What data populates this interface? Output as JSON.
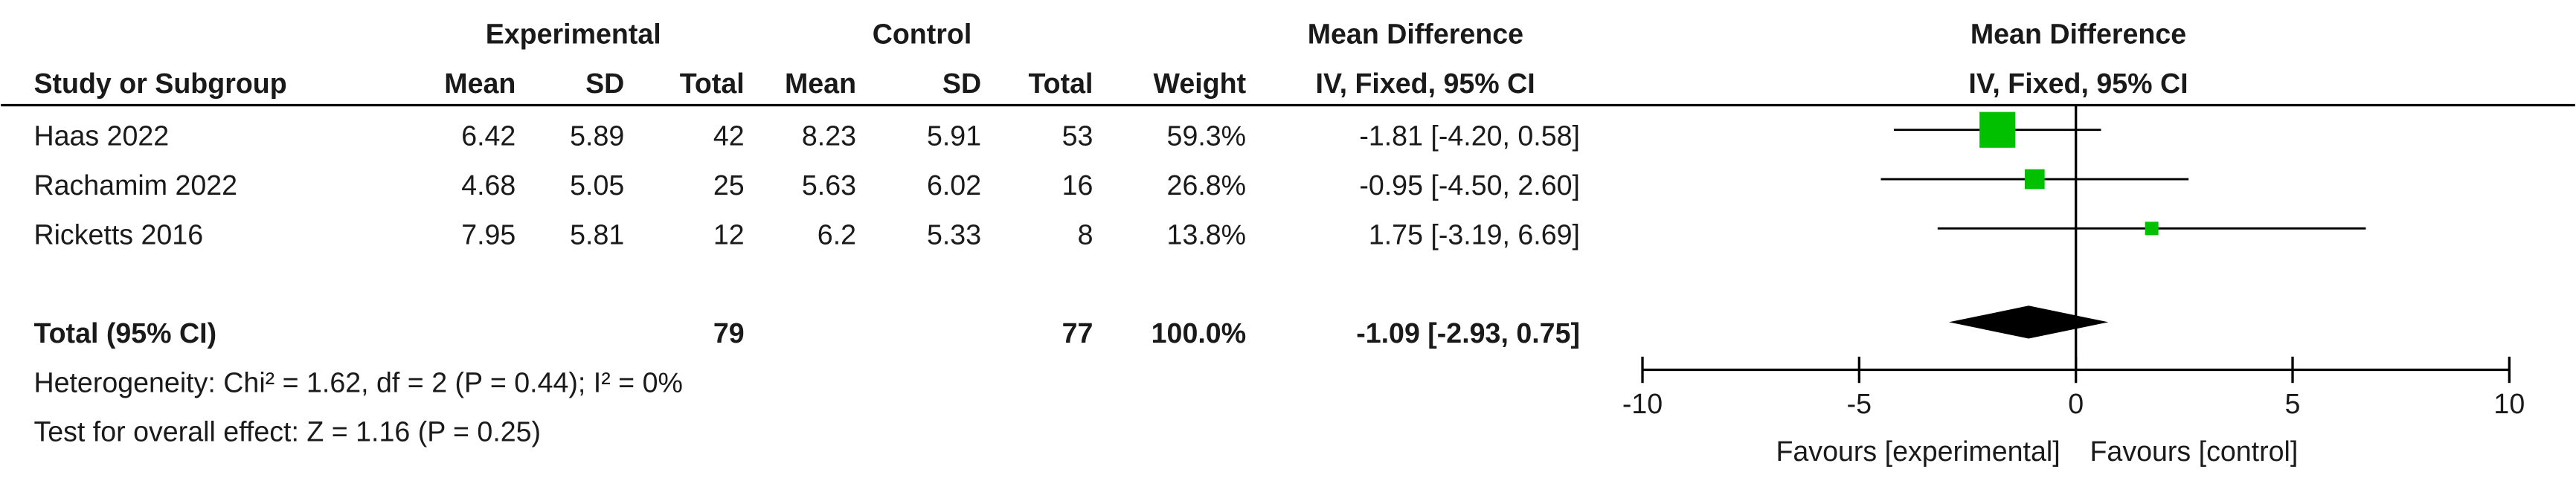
{
  "chart_data": {
    "type": "forest",
    "headers": {
      "experimental": "Experimental",
      "control": "Control",
      "md_table": "Mean Difference",
      "md_plot": "Mean Difference",
      "study": "Study or Subgroup",
      "columns": [
        "Mean",
        "SD",
        "Total",
        "Mean",
        "SD",
        "Total",
        "Weight"
      ],
      "method_table": "IV, Fixed, 95% CI",
      "method_plot": "IV, Fixed, 95% CI"
    },
    "studies": [
      {
        "name": "Haas 2022",
        "exp_mean": 6.42,
        "exp_sd": 5.89,
        "exp_total": 42,
        "ctl_mean": 8.23,
        "ctl_sd": 5.91,
        "ctl_total": 53,
        "weight": 59.3,
        "weight_label": "59.3%",
        "md": -1.81,
        "ci_low": -4.2,
        "ci_high": 0.58,
        "ci_label": "-1.81 [-4.20, 0.58]"
      },
      {
        "name": "Rachamim 2022",
        "exp_mean": 4.68,
        "exp_sd": 5.05,
        "exp_total": 25,
        "ctl_mean": 5.63,
        "ctl_sd": 6.02,
        "ctl_total": 16,
        "weight": 26.8,
        "weight_label": "26.8%",
        "md": -0.95,
        "ci_low": -4.5,
        "ci_high": 2.6,
        "ci_label": "-0.95 [-4.50, 2.60]"
      },
      {
        "name": "Ricketts 2016",
        "exp_mean": 7.95,
        "exp_sd": 5.81,
        "exp_total": 12,
        "ctl_mean": 6.2,
        "ctl_sd": 5.33,
        "ctl_total": 8,
        "weight": 13.8,
        "weight_label": "13.8%",
        "md": 1.75,
        "ci_low": -3.19,
        "ci_high": 6.69,
        "ci_label": "1.75 [-3.19, 6.69]"
      }
    ],
    "total": {
      "name": "Total (95% CI)",
      "exp_total": 79,
      "ctl_total": 77,
      "weight": 100,
      "weight_label": "100.0%",
      "md": -1.09,
      "ci_low": -2.93,
      "ci_high": 0.75,
      "ci_label": "-1.09 [-2.93, 0.75]"
    },
    "heterogeneity": "Heterogeneity: Chi² = 1.62, df = 2 (P = 0.44); I² = 0%",
    "overall_effect": "Test for overall effect: Z = 1.16 (P = 0.25)",
    "xlim": [
      -10,
      10
    ],
    "xticks": [
      -10,
      -5,
      0,
      5,
      10
    ],
    "favours_left": "Favours [experimental]",
    "favours_right": "Favours [control]",
    "square_color": "#00c000",
    "diamond_color": "#000000"
  }
}
